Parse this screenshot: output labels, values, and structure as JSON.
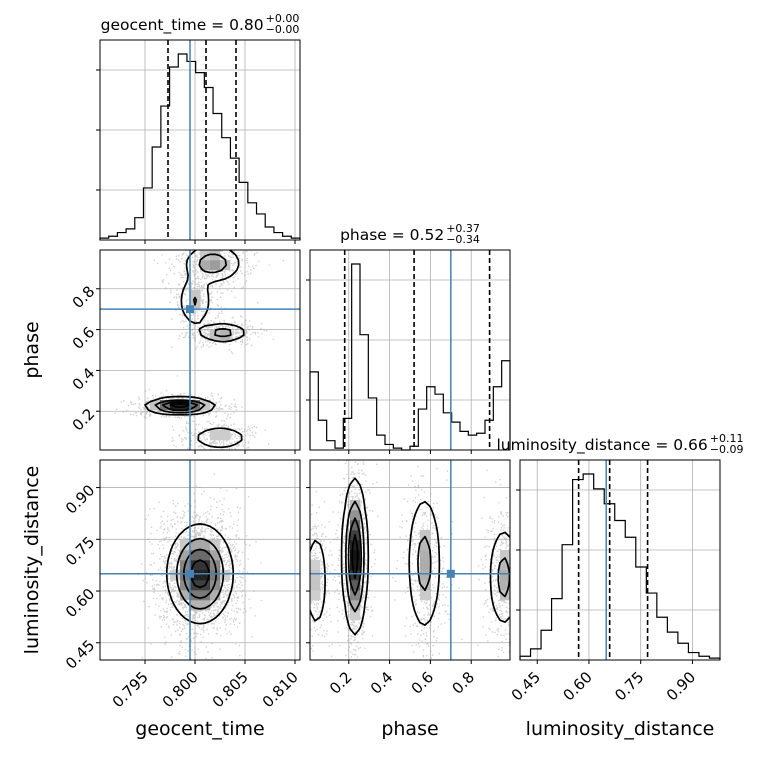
{
  "chart_data": {
    "type": "corner",
    "parameters": [
      {
        "name": "geocent_time",
        "label": "geocent_time",
        "range": [
          0.7905,
          0.8105
        ],
        "ticks": [
          0.795,
          0.8,
          0.805,
          0.81
        ],
        "tick_labels": [
          "0.795",
          "0.800",
          "0.805",
          "0.810"
        ],
        "truth": 0.7995,
        "quantiles": [
          0.7973,
          0.8011,
          0.8041
        ],
        "title": "geocent_time = 0.80",
        "title_sup": "+0.00",
        "title_sub": "−0.00"
      },
      {
        "name": "phase",
        "label": "phase",
        "range": [
          0.01,
          0.99
        ],
        "ticks": [
          0.2,
          0.4,
          0.6,
          0.8
        ],
        "tick_labels": [
          "0.2",
          "0.4",
          "0.6",
          "0.8"
        ],
        "truth": 0.7,
        "quantiles": [
          0.18,
          0.52,
          0.89
        ],
        "title": "phase = 0.52",
        "title_sup": "+0.37",
        "title_sub": "−0.34"
      },
      {
        "name": "luminosity_distance",
        "label": "luminosity_distance",
        "range": [
          0.4,
          0.98
        ],
        "ticks": [
          0.45,
          0.6,
          0.75,
          0.9
        ],
        "tick_labels": [
          "0.45",
          "0.60",
          "0.75",
          "0.90"
        ],
        "truth": 0.65,
        "quantiles": [
          0.57,
          0.66,
          0.77
        ],
        "title": "luminosity_distance = 0.66",
        "title_sup": "+0.11",
        "title_sub": "−0.09"
      }
    ],
    "histograms": {
      "geocent_time": [
        0.01,
        0.02,
        0.04,
        0.06,
        0.12,
        0.28,
        0.5,
        0.72,
        0.93,
        1.0,
        0.96,
        0.9,
        0.82,
        0.68,
        0.55,
        0.44,
        0.31,
        0.2,
        0.14,
        0.07,
        0.04,
        0.02,
        0.01
      ],
      "phase": [
        0.42,
        0.16,
        0.05,
        0.01,
        0.17,
        1.0,
        0.62,
        0.28,
        0.08,
        0.03,
        0.01,
        0.0,
        0.02,
        0.22,
        0.34,
        0.3,
        0.2,
        0.15,
        0.1,
        0.08,
        0.09,
        0.16,
        0.34,
        0.48
      ],
      "luminosity_distance": [
        0.02,
        0.06,
        0.16,
        0.33,
        0.62,
        0.97,
        1.0,
        0.92,
        0.84,
        0.75,
        0.66,
        0.5,
        0.36,
        0.23,
        0.15,
        0.09,
        0.04,
        0.02,
        0.01
      ]
    },
    "hist_reference_y": [
      0.75
    ],
    "truth_color": "#4682b4",
    "line_color": "#000000",
    "grid": true,
    "blobs": {
      "phase_vs_geocent_time": [
        {
          "x": 0.7985,
          "y": 0.225,
          "sx": 0.0017,
          "sy": 0.02,
          "w": 1.0
        },
        {
          "x": 0.8018,
          "y": 0.925,
          "sx": 0.0015,
          "sy": 0.05,
          "w": 0.5
        },
        {
          "x": 0.8,
          "y": 0.74,
          "sx": 0.0009,
          "sy": 0.07,
          "w": 0.35
        },
        {
          "x": 0.8028,
          "y": 0.585,
          "sx": 0.0013,
          "sy": 0.025,
          "w": 0.45
        },
        {
          "x": 0.8025,
          "y": 0.07,
          "sx": 0.0015,
          "sy": 0.03,
          "w": 0.35
        }
      ],
      "luminosity_distance_vs_geocent_time": [
        {
          "x": 0.8005,
          "y": 0.65,
          "sx": 0.0016,
          "sy": 0.07,
          "w": 1.0
        }
      ],
      "luminosity_distance_vs_phase": [
        {
          "x": 0.23,
          "y": 0.7,
          "sx": 0.03,
          "sy": 0.11,
          "w": 1.0
        },
        {
          "x": 0.57,
          "y": 0.68,
          "sx": 0.045,
          "sy": 0.11,
          "w": 0.45
        },
        {
          "x": 0.96,
          "y": 0.64,
          "sx": 0.04,
          "sy": 0.08,
          "w": 0.45
        },
        {
          "x": 0.04,
          "y": 0.63,
          "sx": 0.03,
          "sy": 0.08,
          "w": 0.35
        }
      ]
    }
  }
}
